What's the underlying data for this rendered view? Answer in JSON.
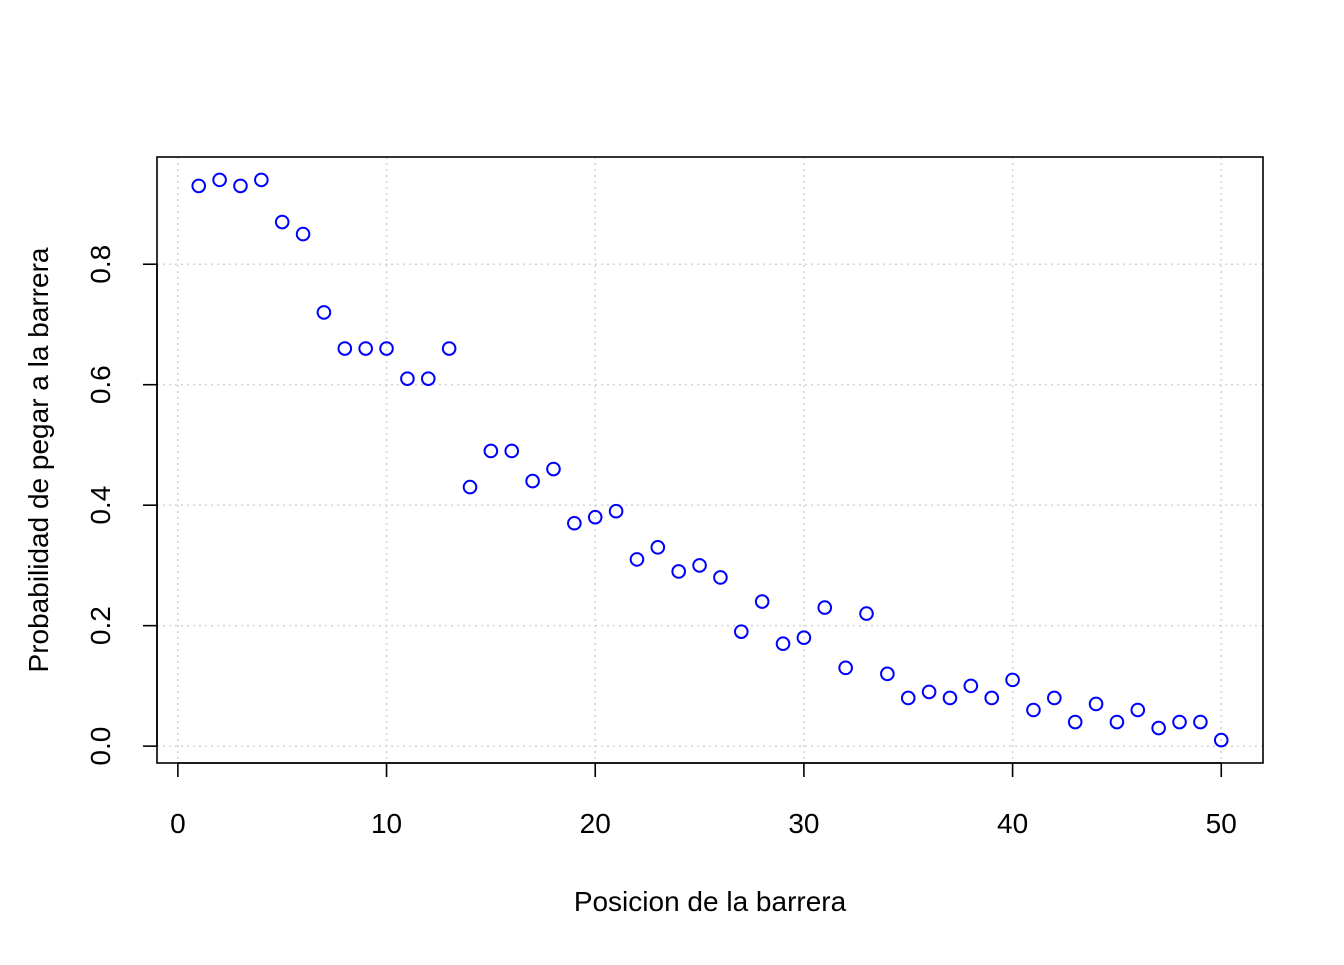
{
  "chart_data": {
    "type": "scatter",
    "title": "",
    "xlabel": "Posicion de la barrera",
    "ylabel": "Probabilidad de pegar a la barrera",
    "xlim": [
      -1,
      52
    ],
    "ylim": [
      -0.028,
      0.978
    ],
    "x_ticks": [
      0,
      10,
      20,
      30,
      40,
      50
    ],
    "x_tick_labels": [
      "0",
      "10",
      "20",
      "30",
      "40",
      "50"
    ],
    "y_ticks": [
      0.0,
      0.2,
      0.4,
      0.6,
      0.8
    ],
    "y_tick_labels": [
      "0.0",
      "0.2",
      "0.4",
      "0.6",
      "0.8"
    ],
    "grid": true,
    "point_style": "open-circle",
    "point_color": "#0000FF",
    "x": [
      1,
      2,
      3,
      4,
      5,
      6,
      7,
      8,
      9,
      10,
      11,
      12,
      13,
      14,
      15,
      16,
      17,
      18,
      19,
      20,
      21,
      22,
      23,
      24,
      25,
      26,
      27,
      28,
      29,
      30,
      31,
      32,
      33,
      34,
      35,
      36,
      37,
      38,
      39,
      40,
      41,
      42,
      43,
      44,
      45,
      46,
      47,
      48,
      49,
      50
    ],
    "y": [
      0.93,
      0.94,
      0.93,
      0.94,
      0.87,
      0.85,
      0.72,
      0.66,
      0.66,
      0.66,
      0.61,
      0.61,
      0.66,
      0.43,
      0.49,
      0.49,
      0.44,
      0.46,
      0.37,
      0.38,
      0.39,
      0.31,
      0.33,
      0.29,
      0.3,
      0.28,
      0.19,
      0.24,
      0.17,
      0.18,
      0.23,
      0.13,
      0.22,
      0.12,
      0.08,
      0.09,
      0.08,
      0.1,
      0.08,
      0.11,
      0.06,
      0.08,
      0.04,
      0.07,
      0.04,
      0.06,
      0.03,
      0.04,
      0.04,
      0.01
    ]
  }
}
